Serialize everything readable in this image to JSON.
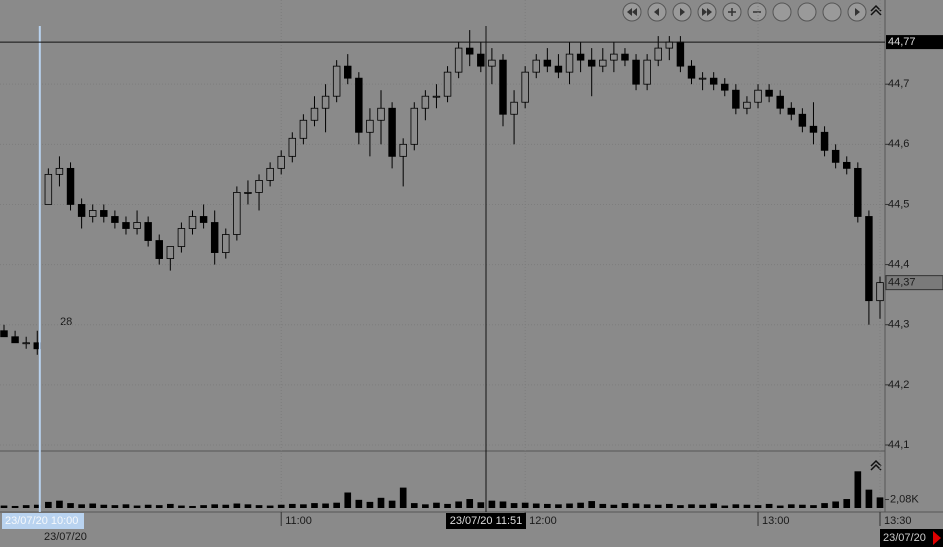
{
  "chart_data": {
    "type": "candlestick",
    "ohlc": [
      [
        44.29,
        44.3,
        44.28,
        44.28
      ],
      [
        44.28,
        44.29,
        44.27,
        44.27
      ],
      [
        44.27,
        44.28,
        44.26,
        44.27
      ],
      [
        44.27,
        44.29,
        44.25,
        44.26
      ],
      [
        44.5,
        44.56,
        44.5,
        44.55
      ],
      [
        44.55,
        44.58,
        44.53,
        44.56
      ],
      [
        44.56,
        44.57,
        44.49,
        44.5
      ],
      [
        44.5,
        44.51,
        44.46,
        44.48
      ],
      [
        44.48,
        44.5,
        44.47,
        44.49
      ],
      [
        44.49,
        44.5,
        44.47,
        44.48
      ],
      [
        44.48,
        44.49,
        44.46,
        44.47
      ],
      [
        44.47,
        44.48,
        44.45,
        44.46
      ],
      [
        44.46,
        44.49,
        44.45,
        44.47
      ],
      [
        44.47,
        44.48,
        44.43,
        44.44
      ],
      [
        44.44,
        44.45,
        44.4,
        44.41
      ],
      [
        44.41,
        44.43,
        44.39,
        44.43
      ],
      [
        44.43,
        44.47,
        44.42,
        44.46
      ],
      [
        44.46,
        44.49,
        44.45,
        44.48
      ],
      [
        44.48,
        44.5,
        44.46,
        44.47
      ],
      [
        44.47,
        44.49,
        44.4,
        44.42
      ],
      [
        44.42,
        44.46,
        44.41,
        44.45
      ],
      [
        44.45,
        44.53,
        44.44,
        44.52
      ],
      [
        44.52,
        44.54,
        44.5,
        44.52
      ],
      [
        44.52,
        44.55,
        44.49,
        44.54
      ],
      [
        44.54,
        44.57,
        44.53,
        44.56
      ],
      [
        44.56,
        44.59,
        44.55,
        44.58
      ],
      [
        44.58,
        44.62,
        44.57,
        44.61
      ],
      [
        44.61,
        44.65,
        44.6,
        44.64
      ],
      [
        44.64,
        44.68,
        44.63,
        44.66
      ],
      [
        44.66,
        44.7,
        44.62,
        44.68
      ],
      [
        44.68,
        44.74,
        44.67,
        44.73
      ],
      [
        44.73,
        44.75,
        44.7,
        44.71
      ],
      [
        44.71,
        44.72,
        44.6,
        44.62
      ],
      [
        44.62,
        44.66,
        44.58,
        44.64
      ],
      [
        44.64,
        44.69,
        44.6,
        44.66
      ],
      [
        44.66,
        44.67,
        44.56,
        44.58
      ],
      [
        44.58,
        44.61,
        44.53,
        44.6
      ],
      [
        44.6,
        44.67,
        44.59,
        44.66
      ],
      [
        44.66,
        44.69,
        44.64,
        44.68
      ],
      [
        44.68,
        44.7,
        44.66,
        44.68
      ],
      [
        44.68,
        44.73,
        44.67,
        44.72
      ],
      [
        44.72,
        44.77,
        44.71,
        44.76
      ],
      [
        44.76,
        44.79,
        44.73,
        44.75
      ],
      [
        44.75,
        44.77,
        44.72,
        44.73
      ],
      [
        44.73,
        44.76,
        44.7,
        44.74
      ],
      [
        44.74,
        44.75,
        44.63,
        44.65
      ],
      [
        44.65,
        44.69,
        44.6,
        44.67
      ],
      [
        44.67,
        44.73,
        44.66,
        44.72
      ],
      [
        44.72,
        44.75,
        44.71,
        44.74
      ],
      [
        44.74,
        44.76,
        44.72,
        44.73
      ],
      [
        44.73,
        44.75,
        44.71,
        44.72
      ],
      [
        44.72,
        44.77,
        44.7,
        44.75
      ],
      [
        44.75,
        44.77,
        44.72,
        44.74
      ],
      [
        44.74,
        44.76,
        44.68,
        44.73
      ],
      [
        44.73,
        44.76,
        44.72,
        44.74
      ],
      [
        44.74,
        44.77,
        44.72,
        44.75
      ],
      [
        44.75,
        44.76,
        44.73,
        44.74
      ],
      [
        44.74,
        44.75,
        44.69,
        44.7
      ],
      [
        44.7,
        44.75,
        44.69,
        44.74
      ],
      [
        44.74,
        44.78,
        44.73,
        44.76
      ],
      [
        44.76,
        44.78,
        44.74,
        44.77
      ],
      [
        44.77,
        44.78,
        44.72,
        44.73
      ],
      [
        44.73,
        44.74,
        44.7,
        44.71
      ],
      [
        44.71,
        44.72,
        44.69,
        44.71
      ],
      [
        44.71,
        44.72,
        44.69,
        44.7
      ],
      [
        44.7,
        44.71,
        44.68,
        44.69
      ],
      [
        44.69,
        44.7,
        44.65,
        44.66
      ],
      [
        44.66,
        44.68,
        44.65,
        44.67
      ],
      [
        44.67,
        44.7,
        44.66,
        44.69
      ],
      [
        44.69,
        44.7,
        44.67,
        44.68
      ],
      [
        44.68,
        44.69,
        44.65,
        44.66
      ],
      [
        44.66,
        44.67,
        44.64,
        44.65
      ],
      [
        44.65,
        44.66,
        44.62,
        44.63
      ],
      [
        44.63,
        44.67,
        44.6,
        44.62
      ],
      [
        44.62,
        44.63,
        44.58,
        44.59
      ],
      [
        44.59,
        44.6,
        44.56,
        44.57
      ],
      [
        44.57,
        44.58,
        44.55,
        44.56
      ],
      [
        44.56,
        44.57,
        44.47,
        44.48
      ],
      [
        44.48,
        44.49,
        44.3,
        44.34
      ],
      [
        44.34,
        44.38,
        44.31,
        44.37
      ]
    ],
    "volume": [
      600,
      500,
      700,
      800,
      1500,
      1800,
      1200,
      900,
      1100,
      800,
      700,
      900,
      600,
      800,
      700,
      1000,
      600,
      500,
      700,
      900,
      800,
      1100,
      900,
      700,
      600,
      800,
      1000,
      900,
      1200,
      1100,
      1300,
      3800,
      2000,
      1500,
      2500,
      1800,
      5000,
      1200,
      900,
      1300,
      1000,
      1600,
      2200,
      1400,
      1800,
      1600,
      1200,
      1300,
      1100,
      1000,
      900,
      1100,
      1300,
      1700,
      1000,
      800,
      1200,
      1100,
      900,
      800,
      1000,
      700,
      900,
      800,
      1100,
      600,
      900,
      800,
      700,
      1000,
      600,
      900,
      800,
      700,
      1200,
      1600,
      2200,
      9000,
      4500,
      2600
    ],
    "categories": [
      null,
      null,
      null,
      null,
      null,
      null,
      null,
      null,
      null,
      null,
      null,
      null,
      null,
      null,
      null,
      null,
      null,
      null,
      null,
      null,
      null,
      null,
      null,
      null,
      null,
      "11:00",
      null,
      null,
      null,
      null,
      null,
      null,
      null,
      null,
      null,
      null,
      null,
      null,
      null,
      null,
      null,
      null,
      null,
      null,
      null,
      null,
      null,
      "12:00",
      null,
      null,
      null,
      null,
      null,
      null,
      null,
      null,
      null,
      null,
      null,
      null,
      null,
      null,
      null,
      null,
      null,
      null,
      null,
      null,
      "13:00",
      null,
      null,
      null,
      null,
      null,
      null,
      null,
      null,
      null,
      null,
      "13:30"
    ],
    "ylim": [
      44.09,
      44.84
    ],
    "yticks": [
      {
        "value": 44.1,
        "label": "44,1"
      },
      {
        "value": 44.2,
        "label": "44,2"
      },
      {
        "value": 44.3,
        "label": "44,3"
      },
      {
        "value": 44.4,
        "label": "44,4"
      },
      {
        "value": 44.5,
        "label": "44,5"
      },
      {
        "value": 44.6,
        "label": "44,6"
      },
      {
        "value": 44.7,
        "label": "44,7"
      }
    ],
    "vlim": [
      0,
      13000
    ],
    "vticks": [
      {
        "value": 2080,
        "label": "2,08K"
      }
    ],
    "last_price": {
      "value": 44.37,
      "label": "44,37"
    },
    "crosshair": {
      "time": "23/07/20 11:51",
      "price": {
        "value": 44.77,
        "label": "44,77"
      }
    },
    "cursor_time": "23/07/20 10:00",
    "date_left": "23/07/20",
    "date_right": "23/07/20",
    "indicator_label": "28",
    "grid": true,
    "up_color": "#8a8a8a",
    "down_color": "#000000"
  }
}
